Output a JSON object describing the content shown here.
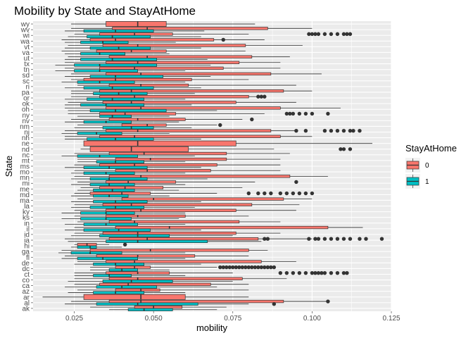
{
  "chart_data": {
    "type": "boxplot",
    "orientation": "horizontal",
    "title": "Mobility by State and StayAtHome",
    "xlabel": "mobility",
    "ylabel": "State",
    "xlim": [
      0.012,
      0.125
    ],
    "xticks": [
      0.025,
      0.05,
      0.075,
      0.1,
      0.125
    ],
    "xtick_labels": [
      "0.025",
      "0.050",
      "0.075",
      "0.100",
      "0.125"
    ],
    "grid": true,
    "legend": {
      "title": "StayAtHome",
      "placement": "right",
      "entries": [
        {
          "label": "0",
          "color": "#F8766D"
        },
        {
          "label": "1",
          "color": "#00BFC4"
        }
      ]
    },
    "states": [
      "ak",
      "al",
      "ar",
      "az",
      "ca",
      "co",
      "ct",
      "dc",
      "de",
      "fl",
      "ga",
      "hi",
      "ia",
      "id",
      "il",
      "in",
      "ks",
      "ky",
      "la",
      "ma",
      "md",
      "me",
      "mi",
      "mn",
      "mo",
      "ms",
      "mt",
      "nc",
      "nd",
      "ne",
      "nh",
      "nj",
      "nm",
      "nv",
      "ny",
      "oh",
      "ok",
      "or",
      "pa",
      "ri",
      "sc",
      "sd",
      "tn",
      "tx",
      "ut",
      "va",
      "vt",
      "wa",
      "wi",
      "wv",
      "wy"
    ],
    "series": [
      {
        "name": "0",
        "color": "#F8766D",
        "boxes": [
          [
            0.03,
            0.044,
            0.05,
            0.059,
            0.073,
            []
          ],
          [
            0.024,
            0.036,
            0.046,
            0.091,
            0.105,
            [
              0.105
            ]
          ],
          [
            0.015,
            0.028,
            0.046,
            0.06,
            0.08,
            []
          ],
          [
            0.026,
            0.038,
            0.046,
            0.052,
            0.08,
            []
          ],
          [
            0.025,
            0.033,
            0.042,
            0.068,
            0.08,
            []
          ],
          [
            0.025,
            0.036,
            0.045,
            0.078,
            0.092,
            []
          ],
          [
            0.025,
            0.035,
            0.045,
            0.055,
            0.075,
            [
              0.09,
              0.092,
              0.094,
              0.096,
              0.098,
              0.1,
              0.101,
              0.102,
              0.103,
              0.104,
              0.106,
              0.108,
              0.11,
              0.111
            ]
          ],
          [
            0.03,
            0.038,
            0.044,
            0.049,
            0.07,
            [
              0.071,
              0.072,
              0.073,
              0.074,
              0.075,
              0.076,
              0.077,
              0.078,
              0.079,
              0.08,
              0.081,
              0.082,
              0.083,
              0.084,
              0.085,
              0.086,
              0.087,
              0.088
            ]
          ],
          [
            0.026,
            0.035,
            0.044,
            0.084,
            0.095,
            []
          ],
          [
            0.022,
            0.032,
            0.045,
            0.063,
            0.08,
            []
          ],
          [
            0.021,
            0.03,
            0.049,
            0.08,
            0.086,
            []
          ],
          [
            0.025,
            0.026,
            0.029,
            0.032,
            0.036,
            [
              0.041
            ]
          ],
          [
            0.022,
            0.036,
            0.048,
            0.083,
            0.1,
            [
              0.085,
              0.086,
              0.099,
              0.101,
              0.102,
              0.104,
              0.106,
              0.108,
              0.11,
              0.112,
              0.115,
              0.117,
              0.122
            ]
          ],
          [
            0.025,
            0.034,
            0.045,
            0.076,
            0.09,
            []
          ],
          [
            0.025,
            0.038,
            0.055,
            0.105,
            0.116,
            []
          ],
          [
            0.026,
            0.036,
            0.044,
            0.077,
            0.09,
            []
          ],
          [
            0.025,
            0.035,
            0.045,
            0.06,
            0.08,
            []
          ],
          [
            0.025,
            0.035,
            0.046,
            0.076,
            0.095,
            []
          ],
          [
            0.025,
            0.034,
            0.043,
            0.081,
            0.096,
            []
          ],
          [
            0.026,
            0.04,
            0.05,
            0.091,
            0.1,
            []
          ],
          [
            0.025,
            0.03,
            0.04,
            0.049,
            0.07,
            [
              0.08,
              0.083,
              0.085,
              0.087,
              0.09,
              0.092,
              0.094,
              0.096,
              0.098,
              0.1
            ]
          ],
          [
            0.027,
            0.033,
            0.041,
            0.053,
            0.078,
            []
          ],
          [
            0.026,
            0.035,
            0.042,
            0.057,
            0.082,
            [
              0.095
            ]
          ],
          [
            0.025,
            0.036,
            0.046,
            0.093,
            0.105,
            []
          ],
          [
            0.025,
            0.038,
            0.048,
            0.068,
            0.09,
            []
          ],
          [
            0.025,
            0.033,
            0.044,
            0.07,
            0.09,
            []
          ],
          [
            0.026,
            0.038,
            0.049,
            0.073,
            0.09,
            []
          ],
          [
            0.025,
            0.036,
            0.047,
            0.073,
            0.093,
            []
          ],
          [
            0.027,
            0.03,
            0.043,
            0.061,
            0.088,
            [
              0.109,
              0.11,
              0.112
            ]
          ],
          [
            0.028,
            0.028,
            0.045,
            0.076,
            0.119,
            []
          ],
          [
            0.022,
            0.033,
            0.044,
            0.09,
            0.1,
            []
          ],
          [
            0.022,
            0.035,
            0.045,
            0.087,
            0.095,
            [
              0.095,
              0.098,
              0.104,
              0.106,
              0.108,
              0.11,
              0.112,
              0.113,
              0.115
            ]
          ],
          [
            0.026,
            0.04,
            0.048,
            0.054,
            0.07,
            [
              0.071
            ]
          ],
          [
            0.024,
            0.036,
            0.045,
            0.06,
            0.078,
            [
              0.081
            ]
          ],
          [
            0.023,
            0.033,
            0.041,
            0.057,
            0.085,
            [
              0.092,
              0.093,
              0.094,
              0.096,
              0.098,
              0.1,
              0.105
            ]
          ],
          [
            0.022,
            0.035,
            0.046,
            0.09,
            0.109,
            []
          ],
          [
            0.023,
            0.034,
            0.043,
            0.076,
            0.095,
            []
          ],
          [
            0.024,
            0.033,
            0.044,
            0.08,
            0.085,
            [
              0.083,
              0.084,
              0.085
            ]
          ],
          [
            0.024,
            0.033,
            0.043,
            0.091,
            0.1,
            []
          ],
          [
            0.026,
            0.036,
            0.046,
            0.061,
            0.095,
            []
          ],
          [
            0.024,
            0.028,
            0.038,
            0.062,
            0.08,
            []
          ],
          [
            0.024,
            0.035,
            0.046,
            0.087,
            0.103,
            []
          ],
          [
            0.022,
            0.033,
            0.044,
            0.072,
            0.09,
            []
          ],
          [
            0.022,
            0.035,
            0.045,
            0.077,
            0.09,
            []
          ],
          [
            0.023,
            0.036,
            0.048,
            0.081,
            0.093,
            []
          ],
          [
            0.021,
            0.032,
            0.043,
            0.054,
            0.079,
            []
          ],
          [
            0.023,
            0.034,
            0.045,
            0.079,
            0.097,
            []
          ],
          [
            0.021,
            0.03,
            0.038,
            0.069,
            0.085,
            [
              0.072
            ]
          ],
          [
            0.025,
            0.033,
            0.044,
            0.056,
            0.08,
            [
              0.099,
              0.1,
              0.101,
              0.102,
              0.104,
              0.106,
              0.108,
              0.11,
              0.111,
              0.112
            ]
          ],
          [
            0.024,
            0.037,
            0.048,
            0.086,
            0.1,
            []
          ],
          [
            0.024,
            0.035,
            0.045,
            0.054,
            0.082,
            []
          ]
        ]
      },
      {
        "name": "1",
        "color": "#00BFC4",
        "boxes": [
          [
            0.036,
            0.042,
            0.047,
            0.056,
            0.07,
            []
          ],
          [
            0.022,
            0.032,
            0.045,
            0.064,
            0.08,
            [
              0.088
            ]
          ],
          null,
          [
            0.023,
            0.031,
            0.038,
            0.047,
            0.06,
            []
          ],
          [
            0.022,
            0.032,
            0.04,
            0.051,
            0.07,
            []
          ],
          [
            0.023,
            0.034,
            0.043,
            0.056,
            0.075,
            []
          ],
          [
            0.025,
            0.031,
            0.036,
            0.043,
            0.06,
            []
          ],
          [
            0.03,
            0.036,
            0.04,
            0.045,
            0.055,
            []
          ],
          [
            0.025,
            0.031,
            0.038,
            0.047,
            0.065,
            []
          ],
          [
            0.021,
            0.026,
            0.034,
            0.045,
            0.06,
            []
          ],
          [
            0.02,
            0.024,
            0.03,
            0.04,
            0.06,
            []
          ],
          [
            0.024,
            0.026,
            0.03,
            0.032,
            0.04,
            []
          ],
          [
            0.023,
            0.035,
            0.045,
            0.067,
            0.084,
            []
          ],
          [
            0.024,
            0.033,
            0.045,
            0.055,
            0.075,
            []
          ],
          [
            0.022,
            0.028,
            0.039,
            0.049,
            0.065,
            []
          ],
          [
            0.022,
            0.028,
            0.035,
            0.045,
            0.06,
            []
          ],
          [
            0.021,
            0.027,
            0.035,
            0.043,
            0.058,
            []
          ],
          [
            0.021,
            0.027,
            0.035,
            0.044,
            0.06,
            []
          ],
          [
            0.024,
            0.03,
            0.038,
            0.047,
            0.063,
            []
          ],
          [
            0.024,
            0.031,
            0.038,
            0.048,
            0.065,
            []
          ],
          [
            0.024,
            0.031,
            0.036,
            0.042,
            0.055,
            []
          ],
          [
            0.026,
            0.031,
            0.037,
            0.044,
            0.058,
            []
          ],
          [
            0.024,
            0.03,
            0.036,
            0.044,
            0.06,
            []
          ],
          [
            0.024,
            0.03,
            0.036,
            0.048,
            0.067,
            []
          ],
          [
            0.024,
            0.028,
            0.035,
            0.044,
            0.06,
            []
          ],
          [
            0.022,
            0.028,
            0.036,
            0.048,
            0.065,
            []
          ],
          [
            0.026,
            0.032,
            0.038,
            0.047,
            0.06,
            []
          ],
          [
            0.021,
            0.026,
            0.033,
            0.045,
            0.063,
            []
          ],
          null,
          null,
          [
            0.022,
            0.029,
            0.038,
            0.05,
            0.065,
            []
          ],
          [
            0.021,
            0.026,
            0.032,
            0.04,
            0.055,
            []
          ],
          [
            0.025,
            0.034,
            0.043,
            0.05,
            0.062,
            []
          ],
          [
            0.022,
            0.028,
            0.035,
            0.043,
            0.058,
            []
          ],
          [
            0.026,
            0.033,
            0.037,
            0.043,
            0.055,
            []
          ],
          [
            0.023,
            0.03,
            0.038,
            0.054,
            0.07,
            []
          ],
          [
            0.022,
            0.027,
            0.035,
            0.047,
            0.062,
            []
          ],
          [
            0.022,
            0.029,
            0.037,
            0.047,
            0.06,
            []
          ],
          [
            0.024,
            0.031,
            0.039,
            0.048,
            0.063,
            []
          ],
          [
            0.022,
            0.028,
            0.037,
            0.05,
            0.065,
            []
          ],
          [
            0.021,
            0.026,
            0.033,
            0.044,
            0.06,
            []
          ],
          [
            0.022,
            0.03,
            0.038,
            0.053,
            0.068,
            []
          ],
          [
            0.019,
            0.025,
            0.033,
            0.045,
            0.06,
            []
          ],
          [
            0.019,
            0.025,
            0.033,
            0.051,
            0.068,
            []
          ],
          [
            0.022,
            0.027,
            0.037,
            0.051,
            0.067,
            []
          ],
          [
            0.022,
            0.027,
            0.033,
            0.041,
            0.055,
            []
          ],
          [
            0.022,
            0.03,
            0.039,
            0.049,
            0.065,
            []
          ],
          [
            0.022,
            0.027,
            0.034,
            0.042,
            0.057,
            []
          ],
          [
            0.023,
            0.029,
            0.037,
            0.049,
            0.065,
            []
          ],
          [
            0.022,
            0.028,
            0.038,
            0.05,
            0.066,
            []
          ],
          null
        ]
      }
    ]
  }
}
